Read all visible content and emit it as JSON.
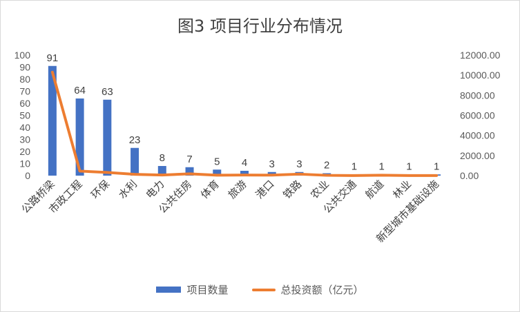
{
  "chart_data": {
    "type": "bar",
    "title": "图3 项目行业分布情况",
    "categories": [
      "公路桥梁",
      "市政工程",
      "环保",
      "水利",
      "电力",
      "公共住房",
      "体育",
      "旅游",
      "港口",
      "铁路",
      "农业",
      "公共交通",
      "航道",
      "林业",
      "新型城市基础设施"
    ],
    "series": [
      {
        "name": "项目数量",
        "type": "bar",
        "axis": "left",
        "values": [
          91,
          64,
          63,
          23,
          8,
          7,
          5,
          4,
          3,
          3,
          2,
          1,
          1,
          1,
          1
        ],
        "color": "#4472c4"
      },
      {
        "name": "总投资额（亿元）",
        "type": "line",
        "axis": "right",
        "values": [
          10300,
          450,
          320,
          130,
          60,
          180,
          40,
          60,
          50,
          150,
          30,
          10,
          40,
          5,
          5
        ],
        "color": "#ed7d31"
      }
    ],
    "ylim_left": [
      0,
      100
    ],
    "yticks_left": [
      "0",
      "10",
      "20",
      "30",
      "40",
      "50",
      "60",
      "70",
      "80",
      "90",
      "100"
    ],
    "ylim_right": [
      0,
      12000
    ],
    "yticks_right": [
      "0.00",
      "2000.00",
      "4000.00",
      "6000.00",
      "8000.00",
      "10000.00",
      "12000.00"
    ],
    "grid": false,
    "legend": "bottom"
  }
}
